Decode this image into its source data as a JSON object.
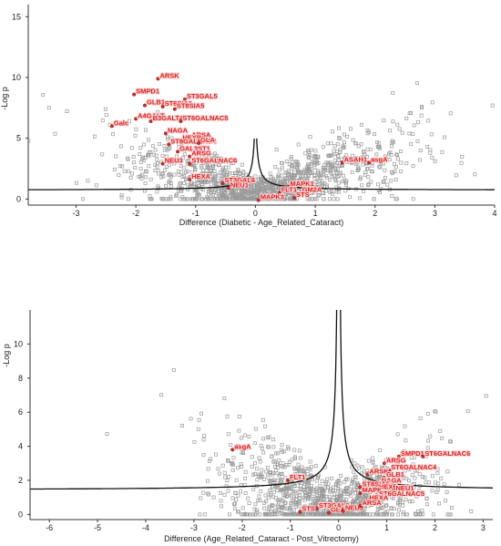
{
  "chart_data": [
    {
      "type": "scatter",
      "title": "",
      "xlabel": "Difference (Diabetic - Age_Related_Cataract)",
      "ylabel": "-Log p",
      "xlim": [
        -3.8,
        4.0
      ],
      "ylim": [
        -0.5,
        16.0
      ],
      "xticks": [
        -3,
        -2,
        -1,
        0,
        1,
        2,
        3,
        4
      ],
      "yticks": [
        0,
        5,
        10,
        15
      ],
      "threshold_curve": {
        "s0": 0.02,
        "c": 1.0,
        "asymptote": 0.0
      },
      "highlighted": [
        {
          "label": "ARSK",
          "x": -1.63,
          "y": 9.9
        },
        {
          "label": "SMPD1",
          "x": -2.03,
          "y": 8.6
        },
        {
          "label": "ST3GAL5",
          "x": -1.18,
          "y": 8.2
        },
        {
          "label": "GLB1",
          "x": -1.85,
          "y": 7.7
        },
        {
          "label": "ST6SIA1",
          "x": -1.55,
          "y": 7.6
        },
        {
          "label": "ST8SIA5",
          "x": -1.35,
          "y": 7.4
        },
        {
          "label": "A4GALT",
          "x": -2.0,
          "y": 6.6
        },
        {
          "label": "B3GALT4",
          "x": -1.75,
          "y": 6.4
        },
        {
          "label": "ST6GALNAC5",
          "x": -1.25,
          "y": 6.4
        },
        {
          "label": "Galc",
          "x": -2.4,
          "y": 6.0
        },
        {
          "label": "NAGA",
          "x": -1.5,
          "y": 5.4
        },
        {
          "label": "ARSA",
          "x": -1.1,
          "y": 5.0
        },
        {
          "label": "HEXB",
          "x": -1.25,
          "y": 4.8
        },
        {
          "label": "ST8GALNAC4",
          "x": -1.45,
          "y": 4.5
        },
        {
          "label": "GLA",
          "x": -0.95,
          "y": 4.6
        },
        {
          "label": "GAL3ST1",
          "x": -1.3,
          "y": 3.9
        },
        {
          "label": "ARSG",
          "x": -1.1,
          "y": 3.5
        },
        {
          "label": "NEU3",
          "x": -1.55,
          "y": 2.9
        },
        {
          "label": "ST6GALNAC6",
          "x": -1.1,
          "y": 2.9
        },
        {
          "label": "HEXA",
          "x": -1.1,
          "y": 1.6
        },
        {
          "label": "ST3GAL6",
          "x": -0.55,
          "y": 1.3
        },
        {
          "label": "NEU1",
          "x": -0.45,
          "y": 0.9
        },
        {
          "label": "ASAH1",
          "x": 1.45,
          "y": 3.0
        },
        {
          "label": "asgA",
          "x": 1.9,
          "y": 3.0
        },
        {
          "label": "MAPK1",
          "x": 0.55,
          "y": 1.0
        },
        {
          "label": "FLT1",
          "x": 0.4,
          "y": 0.5
        },
        {
          "label": "GM2A",
          "x": 0.75,
          "y": 0.5
        },
        {
          "label": "STS",
          "x": 0.65,
          "y": 0.1
        },
        {
          "label": "MAPK3",
          "x": 0.05,
          "y": -0.1
        }
      ]
    },
    {
      "type": "scatter",
      "title": "",
      "xlabel": "Difference (Age_Related_Cataract - Post_Vitrectomy)",
      "ylabel": "-Log p",
      "xlim": [
        -6.4,
        3.2
      ],
      "ylim": [
        -0.3,
        12.0
      ],
      "xticks": [
        -6,
        -5,
        -4,
        -3,
        -2,
        -1,
        0,
        1,
        2,
        3
      ],
      "yticks": [
        0,
        2,
        4,
        6,
        8,
        10
      ],
      "threshold_curve": {
        "s0": 0.0,
        "c": 1.5,
        "asymptote": 0.0
      },
      "highlighted": [
        {
          "label": "asgA",
          "x": -2.2,
          "y": 3.8
        },
        {
          "label": "FLT1",
          "x": -1.05,
          "y": 2.0
        },
        {
          "label": "SMPD1",
          "x": 1.25,
          "y": 3.4
        },
        {
          "label": "ST6GALNAC6",
          "x": 1.75,
          "y": 3.4
        },
        {
          "label": "ARSG",
          "x": 0.95,
          "y": 3.0
        },
        {
          "label": "ST6GALNAC4",
          "x": 1.05,
          "y": 2.6
        },
        {
          "label": "ARSK",
          "x": 0.6,
          "y": 2.35
        },
        {
          "label": "GLB1",
          "x": 0.95,
          "y": 2.15
        },
        {
          "label": "NAGA",
          "x": 0.85,
          "y": 1.8
        },
        {
          "label": "ST8SIA5",
          "x": 0.45,
          "y": 1.6
        },
        {
          "label": "HEXB",
          "x": 0.8,
          "y": 1.45
        },
        {
          "label": "NEU1",
          "x": 1.15,
          "y": 1.35
        },
        {
          "label": "MAPK",
          "x": 0.45,
          "y": 1.25
        },
        {
          "label": "ST6GALNAC5",
          "x": 0.8,
          "y": 1.05
        },
        {
          "label": "HEXA",
          "x": 0.6,
          "y": 0.8
        },
        {
          "label": "ST3GAL6",
          "x": -0.45,
          "y": 0.35
        },
        {
          "label": "STS",
          "x": -0.8,
          "y": 0.15
        },
        {
          "label": "GLA",
          "x": -0.2,
          "y": 0.1
        },
        {
          "label": "NEU3",
          "x": 0.1,
          "y": 0.2
        },
        {
          "label": "ARSA",
          "x": 0.45,
          "y": 0.5
        }
      ]
    }
  ]
}
